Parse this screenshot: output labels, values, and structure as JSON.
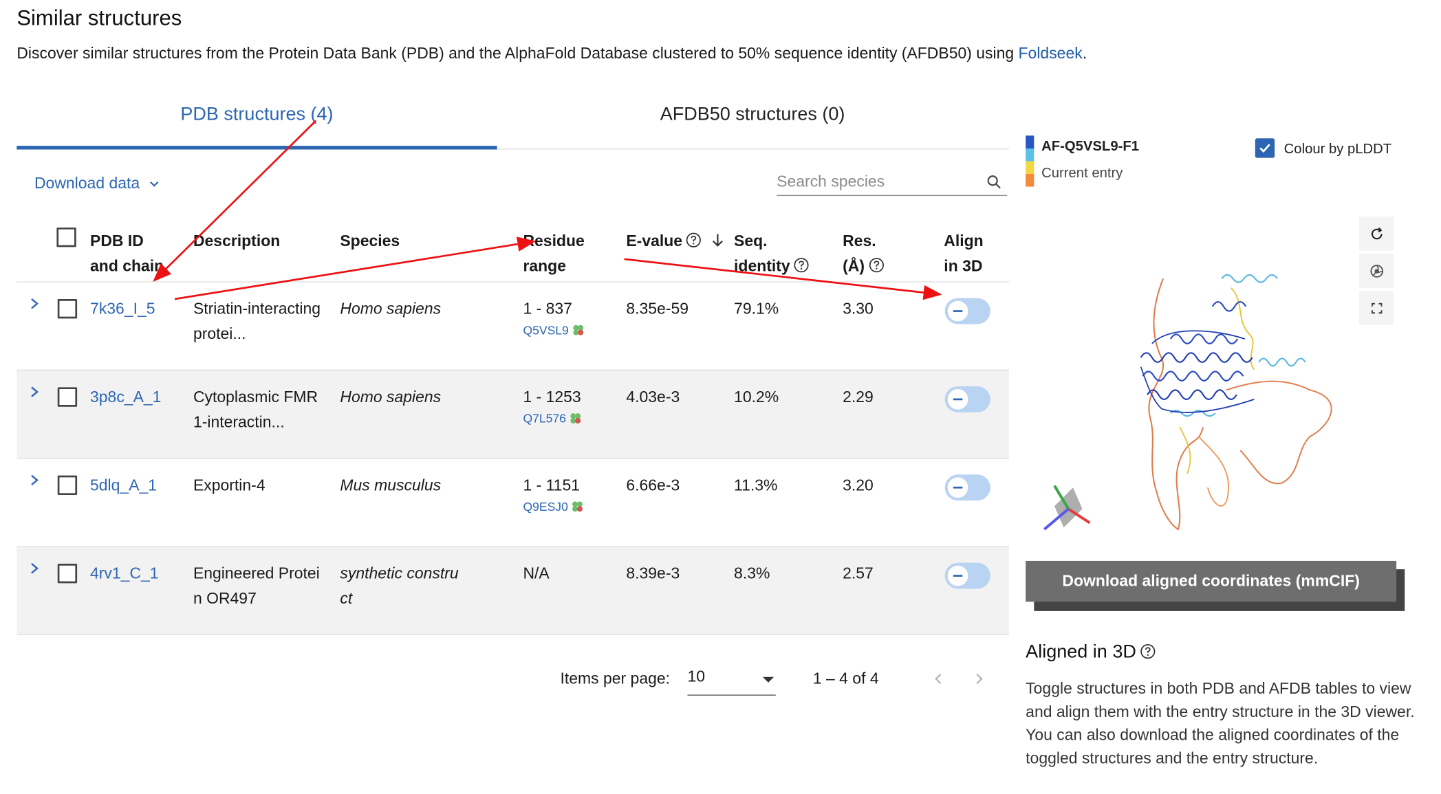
{
  "page": {
    "title": "Similar structures",
    "intro_text": "Discover similar structures from the Protein Data Bank (PDB) and the AlphaFold Database clustered to 50% sequence identity (AFDB50) using ",
    "intro_link": "Foldseek",
    "intro_end": "."
  },
  "tabs": [
    {
      "label": "PDB structures (4)",
      "active": true
    },
    {
      "label": "AFDB50 structures (0)",
      "active": false
    }
  ],
  "toolbar": {
    "download_label": "Download data",
    "search_placeholder": "Search species"
  },
  "table": {
    "headers": {
      "pdb_id_1": "PDB ID",
      "pdb_id_2": "and chain",
      "description": "Description",
      "species": "Species",
      "residue_1": "Residue",
      "residue_2": "range",
      "evalue": "E-value",
      "seq_1": "Seq.",
      "seq_2": "identity",
      "res_1": "Res.",
      "res_2": "(Å)",
      "align_1": "Align",
      "align_2": "in 3D"
    },
    "rows": [
      {
        "id": "7k36_I_5",
        "desc_1": "Striatin-interacting",
        "desc_2": "protei...",
        "species_1": "Homo sapiens",
        "species_2": "",
        "residue": "1 - 837",
        "uniprot": "Q5VSL9",
        "evalue": "8.35e-59",
        "seqid": "79.1%",
        "res": "3.30"
      },
      {
        "id": "3p8c_A_1",
        "desc_1": "Cytoplasmic FMR",
        "desc_2": "1-interactin...",
        "species_1": "Homo sapiens",
        "species_2": "",
        "residue": "1 - 1253",
        "uniprot": "Q7L576",
        "evalue": "4.03e-3",
        "seqid": "10.2%",
        "res": "2.29"
      },
      {
        "id": "5dlq_A_1",
        "desc_1": "Exportin-4",
        "desc_2": "",
        "species_1": "Mus musculus",
        "species_2": "",
        "residue": "1 - 1151",
        "uniprot": "Q9ESJ0",
        "evalue": "6.66e-3",
        "seqid": "11.3%",
        "res": "3.20"
      },
      {
        "id": "4rv1_C_1",
        "desc_1": "Engineered Protei",
        "desc_2": "n OR497",
        "species_1": "synthetic constru",
        "species_2": "ct",
        "residue": "N/A",
        "uniprot": "",
        "evalue": "8.39e-3",
        "seqid": "8.3%",
        "res": "2.57"
      }
    ]
  },
  "pagination": {
    "items_label": "Items per page:",
    "items_value": "10",
    "range": "1 – 4 of 4"
  },
  "viewer": {
    "entry_id": "AF-Q5VSL9-F1",
    "entry_sub": "Current entry",
    "plddt_label": "Colour by pLDDT",
    "plddt_checked": true,
    "download_button": "Download aligned coordinates (mmCIF)"
  },
  "aligned": {
    "title": "Aligned in 3D",
    "text": "Toggle structures in both PDB and AFDB tables to view and align them with the entry structure in the 3D viewer. You can also download the aligned coordinates of the toggled structures and the entry structure."
  },
  "colors": {
    "link_blue": "#2c66b3",
    "toggle_bg": "#b9d3f2",
    "annotation_red": "#ee1111",
    "button_grey": "#6e6e6e"
  }
}
